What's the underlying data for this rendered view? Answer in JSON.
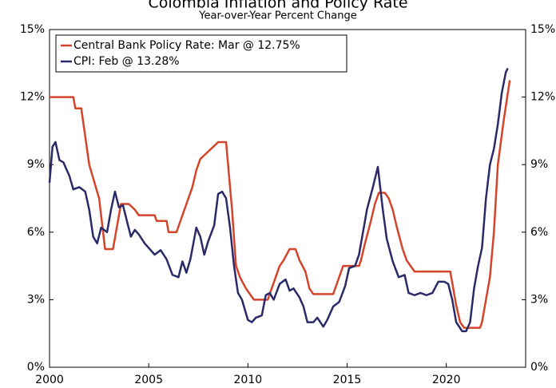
{
  "chart_data": {
    "type": "line",
    "title": "Colombia Inflation and Policy Rate",
    "subtitle": "Year-over-Year Percent Change",
    "xlim": [
      2000,
      2024
    ],
    "xticks": [
      2000,
      2005,
      2010,
      2015,
      2020
    ],
    "ylim": [
      0,
      15
    ],
    "yticks": [
      {
        "value": 0,
        "label": "0%"
      },
      {
        "value": 3,
        "label": "3%"
      },
      {
        "value": 6,
        "label": "6%"
      },
      {
        "value": 9,
        "label": "9%"
      },
      {
        "value": 12,
        "label": "12%"
      },
      {
        "value": 15,
        "label": "15%"
      }
    ],
    "y2lim": [
      0,
      15
    ],
    "y2ticks": [
      {
        "value": 0,
        "label": "0%"
      },
      {
        "value": 3,
        "label": "3%"
      },
      {
        "value": 6,
        "label": "6%"
      },
      {
        "value": 9,
        "label": "9%"
      },
      {
        "value": 12,
        "label": "12%"
      },
      {
        "value": 15,
        "label": "15%"
      }
    ],
    "grid": false,
    "legend": "top-left",
    "series": [
      {
        "name": "Central Bank Policy Rate: Mar @ 12.75%",
        "color": "#d4442a",
        "x": [
          2000,
          2001.2,
          2001.3,
          2001.6,
          2002.0,
          2002.5,
          2002.8,
          2003.2,
          2003.4,
          2003.6,
          2004.0,
          2004.3,
          2004.5,
          2005.3,
          2005.4,
          2005.9,
          2006.0,
          2006.4,
          2006.5,
          2006.8,
          2007.0,
          2007.2,
          2007.4,
          2007.6,
          2007.9,
          2008.2,
          2008.5,
          2008.9,
          2009.0,
          2009.2,
          2009.4,
          2009.6,
          2009.9,
          2010.3,
          2011.0,
          2011.1,
          2011.4,
          2011.6,
          2011.8,
          2012.1,
          2012.4,
          2012.6,
          2012.9,
          2013.1,
          2013.3,
          2014.3,
          2014.5,
          2014.8,
          2015.6,
          2015.7,
          2015.9,
          2016.2,
          2016.4,
          2016.6,
          2016.9,
          2017.1,
          2017.3,
          2017.5,
          2017.8,
          2018.0,
          2018.2,
          2018.4,
          2020.2,
          2020.3,
          2020.5,
          2020.7,
          2020.9,
          2021.7,
          2021.8,
          2021.9,
          2022.0,
          2022.2,
          2022.4,
          2022.6,
          2022.9,
          2023.2
        ],
        "values": [
          12,
          12,
          11.5,
          11.5,
          9,
          7.5,
          5.25,
          5.25,
          6.25,
          7.25,
          7.25,
          7,
          6.75,
          6.75,
          6.5,
          6.5,
          6,
          6,
          6.25,
          7,
          7.5,
          8,
          8.75,
          9.25,
          9.5,
          9.75,
          10,
          10,
          9,
          7,
          4.5,
          4,
          3.5,
          3,
          3,
          3.25,
          4,
          4.5,
          4.75,
          5.25,
          5.25,
          4.75,
          4.25,
          3.5,
          3.25,
          3.25,
          3.75,
          4.5,
          4.5,
          4.75,
          5.5,
          6.5,
          7.25,
          7.75,
          7.75,
          7.5,
          7,
          6.25,
          5.25,
          4.75,
          4.5,
          4.25,
          4.25,
          3.75,
          2.75,
          2,
          1.75,
          1.75,
          2,
          2.5,
          3,
          4,
          6,
          9,
          11,
          12.75
        ]
      },
      {
        "name": "CPI: Feb @ 13.28%",
        "color": "#2b2a68",
        "x": [
          2000,
          2000.15,
          2000.3,
          2000.5,
          2000.7,
          2001.0,
          2001.2,
          2001.5,
          2001.8,
          2002.0,
          2002.2,
          2002.4,
          2002.6,
          2002.9,
          2003.1,
          2003.3,
          2003.5,
          2003.7,
          2003.9,
          2004.1,
          2004.3,
          2004.5,
          2004.8,
          2005.0,
          2005.3,
          2005.6,
          2005.9,
          2006.2,
          2006.5,
          2006.7,
          2006.9,
          2007.1,
          2007.4,
          2007.6,
          2007.8,
          2008.0,
          2008.3,
          2008.5,
          2008.7,
          2008.9,
          2009.1,
          2009.3,
          2009.5,
          2009.7,
          2010.0,
          2010.2,
          2010.4,
          2010.7,
          2010.9,
          2011.1,
          2011.3,
          2011.6,
          2011.9,
          2012.1,
          2012.3,
          2012.6,
          2012.8,
          2013.0,
          2013.3,
          2013.5,
          2013.8,
          2014.0,
          2014.3,
          2014.6,
          2014.9,
          2015.1,
          2015.4,
          2015.6,
          2015.8,
          2016.0,
          2016.3,
          2016.55,
          2016.8,
          2017.0,
          2017.3,
          2017.6,
          2017.9,
          2018.1,
          2018.4,
          2018.7,
          2019.0,
          2019.3,
          2019.6,
          2019.9,
          2020.1,
          2020.3,
          2020.5,
          2020.8,
          2021.0,
          2021.2,
          2021.4,
          2021.6,
          2021.8,
          2022.0,
          2022.2,
          2022.4,
          2022.6,
          2022.8,
          2023.0,
          2023.1
        ],
        "values": [
          8.2,
          9.8,
          10,
          9.2,
          9.1,
          8.5,
          7.9,
          8,
          7.8,
          7,
          5.8,
          5.5,
          6.2,
          6,
          7,
          7.8,
          7.1,
          7.2,
          6.5,
          5.8,
          6.1,
          5.9,
          5.5,
          5.3,
          5,
          5.2,
          4.8,
          4.1,
          4,
          4.7,
          4.2,
          4.8,
          6.2,
          5.8,
          5,
          5.6,
          6.3,
          7.7,
          7.8,
          7.5,
          6.2,
          4.5,
          3.3,
          3,
          2.1,
          2,
          2.2,
          2.3,
          3.2,
          3.3,
          3,
          3.7,
          3.9,
          3.4,
          3.5,
          3.1,
          2.7,
          2,
          2,
          2.2,
          1.8,
          2.1,
          2.7,
          2.9,
          3.6,
          4.4,
          4.5,
          5,
          6,
          7,
          8,
          8.9,
          7,
          5.7,
          4.7,
          4,
          4.1,
          3.3,
          3.2,
          3.3,
          3.2,
          3.3,
          3.8,
          3.8,
          3.7,
          3,
          2,
          1.6,
          1.6,
          2,
          3.5,
          4.5,
          5.3,
          7.5,
          9,
          9.7,
          10.8,
          12.2,
          13.1,
          13.28
        ]
      }
    ]
  }
}
